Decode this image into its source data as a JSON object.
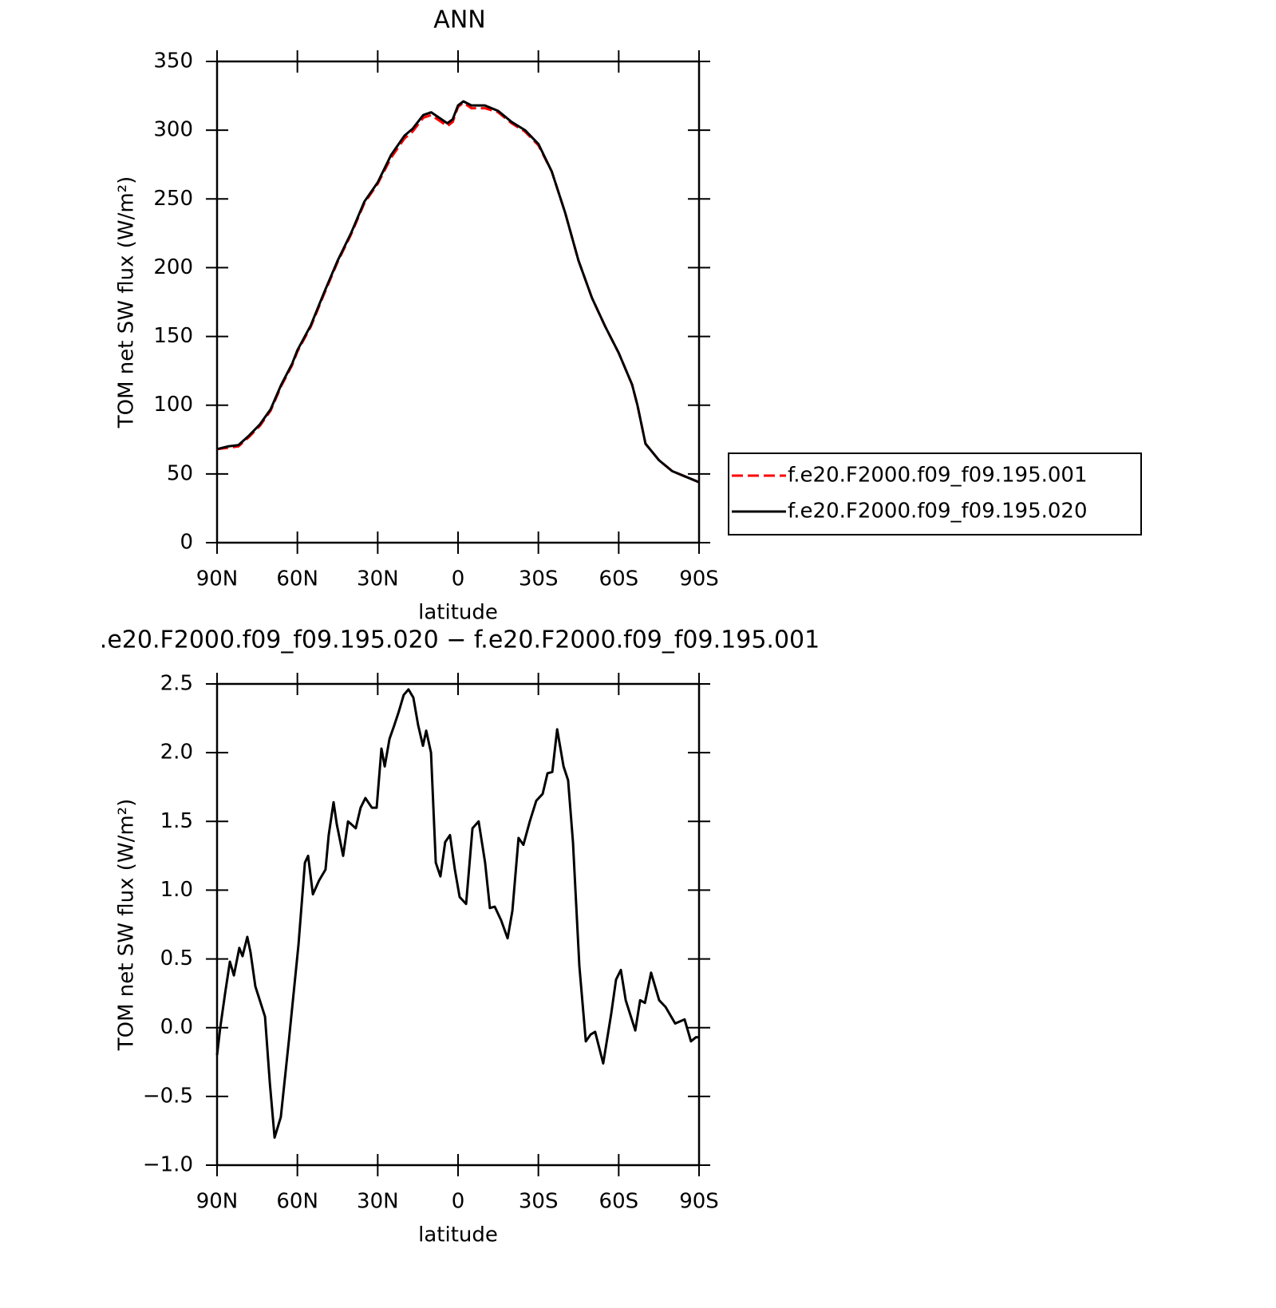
{
  "chart_data": [
    {
      "type": "line",
      "title": "ANN",
      "xlabel": "latitude",
      "ylabel": "TOM net SW flux (W/m²)",
      "x": [
        90,
        86,
        82,
        78,
        74,
        70,
        66,
        62,
        60,
        55,
        50,
        45,
        40,
        35,
        30,
        25,
        20,
        17,
        13,
        10,
        7,
        4,
        2,
        0,
        -2,
        -5,
        -10,
        -15,
        -20,
        -25,
        -30,
        -35,
        -40,
        -45,
        -50,
        -55,
        -60,
        -65,
        -67,
        -70,
        -75,
        -80,
        -85,
        -90
      ],
      "series": [
        {
          "name": "f.e20.F2000.f09_f09.195.001",
          "color": "#ff0000",
          "dashed": true,
          "values": [
            68,
            69,
            70,
            77,
            85,
            96,
            114,
            129,
            139,
            157,
            181,
            204,
            224,
            247,
            261,
            280,
            294,
            299,
            309,
            311,
            307,
            303,
            306,
            317,
            320,
            316,
            316,
            313,
            305,
            299,
            289,
            270,
            240,
            205,
            178,
            157,
            138,
            115,
            100,
            72,
            60,
            52,
            48,
            44
          ]
        },
        {
          "name": "f.e20.F2000.f09_f09.195.020",
          "color": "#000000",
          "dashed": false,
          "values": [
            68,
            70,
            71,
            78,
            86,
            97,
            115,
            130,
            140,
            158,
            182,
            205,
            225,
            248,
            262,
            282,
            296,
            301,
            311,
            313,
            309,
            305,
            308,
            318,
            321,
            318,
            318,
            314,
            306,
            300,
            290,
            270,
            240,
            205,
            178,
            157,
            138,
            115,
            100,
            72,
            60,
            52,
            48,
            44
          ]
        }
      ],
      "xlim": [
        90,
        -90
      ],
      "xticks": [
        {
          "value": 90,
          "label": "90N"
        },
        {
          "value": 60,
          "label": "60N"
        },
        {
          "value": 30,
          "label": "30N"
        },
        0,
        {
          "value": -30,
          "label": "30S"
        },
        {
          "value": -60,
          "label": "60S"
        },
        {
          "value": -90,
          "label": "90S"
        }
      ],
      "ylim": [
        0,
        350
      ],
      "yticks": [
        0,
        50,
        100,
        150,
        200,
        250,
        300,
        350
      ],
      "legend": "right"
    },
    {
      "type": "line",
      "title": ".e20.F2000.f09_f09.195.020 − f.e20.F2000.f09_f09.195.001",
      "xlabel": "latitude",
      "ylabel": "TOM net SW flux (W/m²)",
      "x": [
        90,
        88.8,
        87,
        85.2,
        83.7,
        81.7,
        80.5,
        78.7,
        77.5,
        75.7,
        72.1,
        70.3,
        68.5,
        66.2,
        63.2,
        59.6,
        57.2,
        56,
        54.2,
        51.9,
        49.5,
        48.3,
        46.5,
        45.3,
        42.9,
        41.1,
        39.9,
        38.2,
        36.4,
        34.6,
        32.2,
        30.4,
        28.6,
        27.4,
        25.6,
        23.8,
        22.1,
        20.3,
        18.5,
        16.7,
        14.9,
        13.1,
        11.9,
        10.1,
        8.3,
        6.6,
        4.8,
        3,
        1.2,
        -0.6,
        -3,
        -5.4,
        -7.7,
        -10.1,
        -11.9,
        -13.7,
        -16.1,
        -18.5,
        -20.3,
        -22.6,
        -24.4,
        -26.8,
        -29.2,
        -31.6,
        -33.4,
        -35.2,
        -37,
        -39.4,
        -41.1,
        -42.9,
        -45.3,
        -47.7,
        -49.5,
        -51.2,
        -54.2,
        -57.2,
        -59,
        -60.8,
        -62.6,
        -66.2,
        -68,
        -69.8,
        -72.1,
        -75.1,
        -77.5,
        -81.1,
        -84.6,
        -87,
        -88.8,
        -90
      ],
      "series": [
        {
          "color": "#000000",
          "values": [
            -0.2,
            0.0,
            0.25,
            0.48,
            0.38,
            0.58,
            0.52,
            0.66,
            0.55,
            0.3,
            0.08,
            -0.4,
            -0.8,
            -0.65,
            -0.1,
            0.6,
            1.2,
            1.25,
            0.97,
            1.07,
            1.15,
            1.4,
            1.64,
            1.48,
            1.25,
            1.5,
            1.48,
            1.45,
            1.6,
            1.67,
            1.6,
            1.6,
            2.03,
            1.9,
            2.1,
            2.2,
            2.3,
            2.42,
            2.46,
            2.4,
            2.2,
            2.05,
            2.16,
            2.0,
            1.2,
            1.1,
            1.35,
            1.4,
            1.15,
            0.95,
            0.9,
            1.45,
            1.5,
            1.2,
            0.87,
            0.88,
            0.78,
            0.65,
            0.85,
            1.38,
            1.33,
            1.5,
            1.65,
            1.7,
            1.85,
            1.86,
            2.17,
            1.9,
            1.8,
            1.35,
            0.45,
            -0.1,
            -0.05,
            -0.03,
            -0.26,
            0.1,
            0.35,
            0.42,
            0.2,
            -0.02,
            0.2,
            0.18,
            0.4,
            0.2,
            0.15,
            0.03,
            0.06,
            -0.1,
            -0.07,
            -0.07
          ]
        }
      ],
      "xlim": [
        90,
        -90
      ],
      "xticks": [
        {
          "value": 90,
          "label": "90N"
        },
        {
          "value": 60,
          "label": "60N"
        },
        {
          "value": 30,
          "label": "30N"
        },
        0,
        {
          "value": -30,
          "label": "30S"
        },
        {
          "value": -60,
          "label": "60S"
        },
        {
          "value": -90,
          "label": "90S"
        }
      ],
      "ylim": [
        -1,
        2.5
      ],
      "yticks": [
        {
          "value": -1,
          "label": "−1.0"
        },
        {
          "value": -0.5,
          "label": "−0.5"
        },
        {
          "value": 0,
          "label": "0.0"
        },
        0.5,
        {
          "value": 1,
          "label": "1.0"
        },
        1.5,
        {
          "value": 2,
          "label": "2.0"
        },
        2.5
      ]
    }
  ]
}
